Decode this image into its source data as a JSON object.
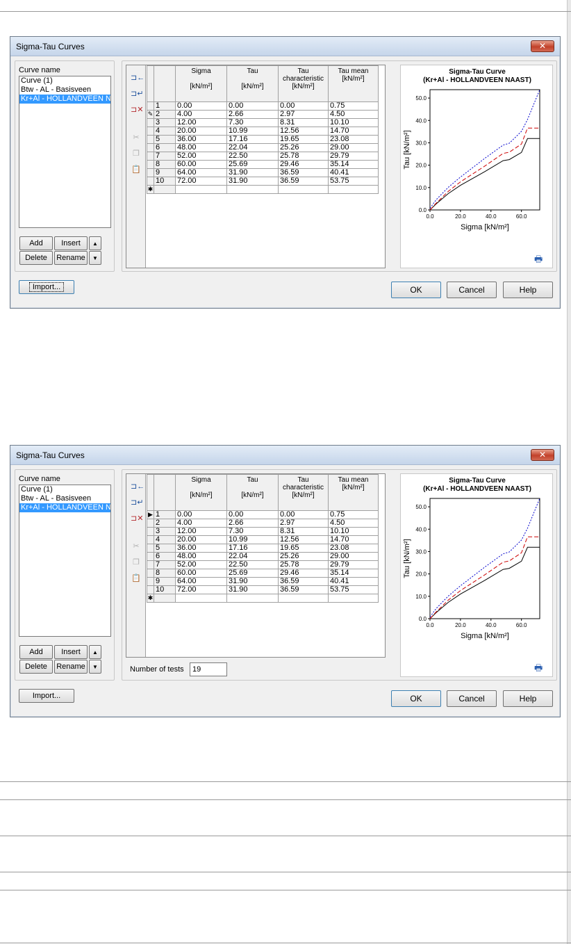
{
  "dialog_title": "Sigma-Tau Curves",
  "close_symbol": "✕",
  "curve_name_label": "Curve name",
  "curves": [
    "Curve (1)",
    "Btw - AL - Basisveen",
    "Kr+Al - HOLLANDVEEN NAAST"
  ],
  "selected_curve_index": 2,
  "buttons": {
    "add": "Add",
    "insert": "Insert",
    "delete": "Delete",
    "rename": "Rename",
    "import": "Import...",
    "ok": "OK",
    "cancel": "Cancel",
    "help": "Help"
  },
  "table": {
    "headers": [
      {
        "name": "Sigma",
        "unit": "[kN/m²]"
      },
      {
        "name": "Tau",
        "unit": "[kN/m²]"
      },
      {
        "name": "Tau characteristic",
        "unit": "[kN/m²]"
      },
      {
        "name": "Tau mean",
        "unit": "[kN/m²]"
      }
    ],
    "rows": [
      [
        "1",
        "0.00",
        "0.00",
        "0.00",
        "0.75"
      ],
      [
        "2",
        "4.00",
        "2.66",
        "2.97",
        "4.50"
      ],
      [
        "3",
        "12.00",
        "7.30",
        "8.31",
        "10.10"
      ],
      [
        "4",
        "20.00",
        "10.99",
        "12.56",
        "14.70"
      ],
      [
        "5",
        "36.00",
        "17.16",
        "19.65",
        "23.08"
      ],
      [
        "6",
        "48.00",
        "22.04",
        "25.26",
        "29.00"
      ],
      [
        "7",
        "52.00",
        "22.50",
        "25.78",
        "29.79"
      ],
      [
        "8",
        "60.00",
        "25.69",
        "29.46",
        "35.14"
      ],
      [
        "9",
        "64.00",
        "31.90",
        "36.59",
        "40.41"
      ],
      [
        "10",
        "72.00",
        "31.90",
        "36.59",
        "53.75"
      ]
    ],
    "new_row_marker": "✱",
    "edit_marker": "✎",
    "current_marker": "▶"
  },
  "number_of_tests_label": "Number of tests",
  "number_of_tests_value": "19",
  "chart_data": {
    "type": "line",
    "title": "Sigma-Tau Curve",
    "subtitle": "(Kr+Al - HOLLANDVEEN NAAST)",
    "xlabel": "Sigma [kN/m²]",
    "ylabel": "Tau [kN/m²]",
    "xlim": [
      0,
      72
    ],
    "ylim": [
      0,
      53.75
    ],
    "xticks": [
      "0.0",
      "20.0",
      "40.0",
      "60.0"
    ],
    "yticks": [
      "0.0",
      "10.0",
      "20.0",
      "30.0",
      "40.0",
      "50.0"
    ],
    "x": [
      0,
      4,
      12,
      20,
      36,
      48,
      52,
      60,
      64,
      72
    ],
    "series": [
      {
        "values": [
          0,
          2.66,
          7.3,
          10.99,
          17.16,
          22.04,
          22.5,
          25.69,
          31.9,
          31.9
        ],
        "color": "#000000",
        "dash": "solid"
      },
      {
        "values": [
          0,
          2.97,
          8.31,
          12.56,
          19.65,
          25.26,
          25.78,
          29.46,
          36.59,
          36.59
        ],
        "color": "#cc0000",
        "dash": "long"
      },
      {
        "values": [
          0.75,
          4.5,
          10.1,
          14.7,
          23.08,
          29.0,
          29.79,
          35.14,
          40.41,
          53.75
        ],
        "color": "#0000cc",
        "dash": "short"
      }
    ]
  }
}
